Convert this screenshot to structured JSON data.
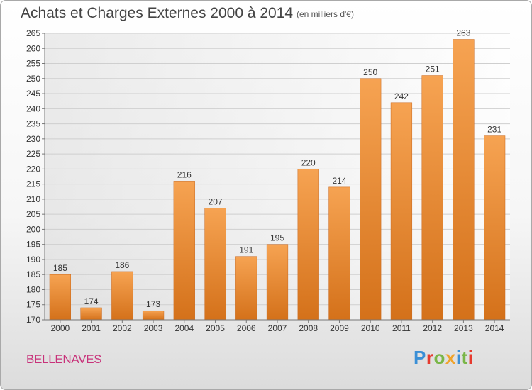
{
  "header": {
    "title": "Achats et Charges Externes 2000 à 2014",
    "unit": "(en milliers d'€)"
  },
  "footer": {
    "place": "BELLENAVES",
    "logo": "Proxiti"
  },
  "colors": {
    "bar_light": "#f6a352",
    "bar_dark": "#d4711a",
    "place": "#c8327a",
    "logo": [
      "#3a8fd6",
      "#e63a2e",
      "#7ab648",
      "#f0a32a",
      "#3a8fd6",
      "#7ab648",
      "#e63a2e"
    ]
  },
  "chart_data": {
    "type": "bar",
    "categories": [
      "2000",
      "2001",
      "2002",
      "2003",
      "2004",
      "2005",
      "2006",
      "2007",
      "2008",
      "2009",
      "2010",
      "2011",
      "2012",
      "2013",
      "2014"
    ],
    "values": [
      185,
      174,
      186,
      173,
      216,
      207,
      191,
      195,
      220,
      214,
      250,
      242,
      251,
      263,
      231
    ],
    "title": "Achats et Charges Externes 2000 à 2014",
    "xlabel": "",
    "ylabel": "",
    "ylim": [
      170,
      265
    ],
    "yticks": [
      170,
      175,
      180,
      185,
      190,
      195,
      200,
      205,
      210,
      215,
      220,
      225,
      230,
      235,
      240,
      245,
      250,
      255,
      260,
      265
    ],
    "grid": true,
    "legend": "none"
  }
}
